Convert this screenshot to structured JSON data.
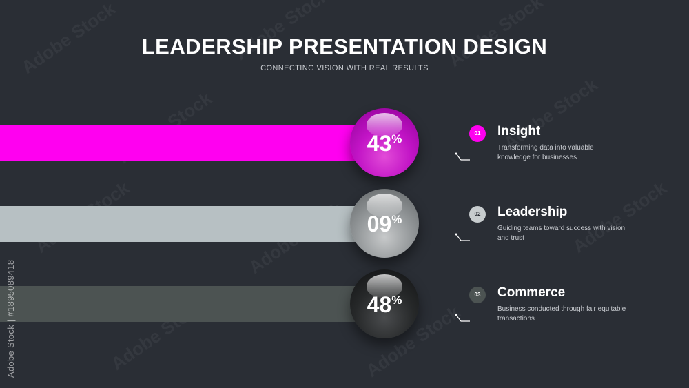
{
  "header": {
    "title": "LEADERSHIP PRESENTATION DESIGN",
    "subtitle": "CONNECTING VISION WITH REAL RESULTS"
  },
  "items": [
    {
      "number": "01",
      "title": "Insight",
      "description": "Transforming data into valuable knowledge for businesses",
      "percent": "43",
      "percent_symbol": "%",
      "color": "#ff00f0"
    },
    {
      "number": "02",
      "title": "Leadership",
      "description": "Guiding teams toward success with vision and trust",
      "percent": "09",
      "percent_symbol": "%",
      "color": "#b7c0c3"
    },
    {
      "number": "03",
      "title": "Commerce",
      "description": "Business conducted through fair equitable transactions",
      "percent": "48",
      "percent_symbol": "%",
      "color": "#4c5352"
    }
  ],
  "watermark": {
    "side_text": "Adobe Stock | #1895089418",
    "tile_text": "Adobe Stock"
  },
  "colors": {
    "background": "#2a2e35",
    "accent": "#ff00f0"
  }
}
